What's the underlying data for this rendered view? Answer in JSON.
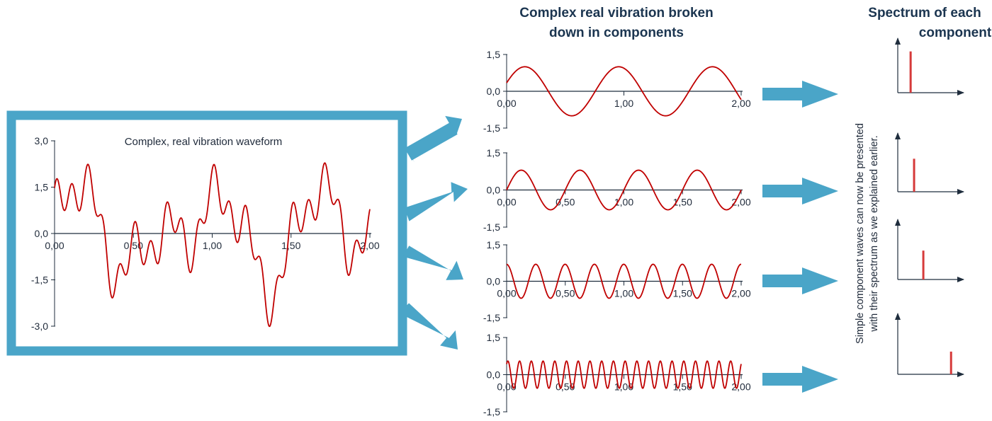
{
  "titles": {
    "middle": [
      "Complex real vibration broken",
      "down in components"
    ],
    "right": [
      "Spectrum of each",
      "component"
    ]
  },
  "side_note": [
    "Simple component waves can now be presented",
    "with their spectrum as we explained earlier."
  ],
  "colors": {
    "frame": "#4aa5c8",
    "wave": "#c00000",
    "axis": "#1f2d3d"
  },
  "chart_data": [
    {
      "type": "line",
      "title": "Complex, real vibration waveform",
      "x_range": [
        0,
        2
      ],
      "ylim": [
        -3,
        3
      ],
      "x_ticks": [
        "0,00",
        "0,50",
        "1,00",
        "1,50",
        "2,00"
      ],
      "y_ticks": [
        "3,0",
        "1,5",
        "0,0",
        "-1,5",
        "-3,0"
      ],
      "series": [
        {
          "components": [
            {
              "amplitude": 1.0,
              "frequency": 1.25,
              "phase": 0.35
            },
            {
              "amplitude": 0.8,
              "frequency": 2.0,
              "phase": 0.0
            },
            {
              "amplitude": 0.7,
              "frequency": 4.0,
              "phase": 1.6
            },
            {
              "amplitude": 0.55,
              "frequency": 10.0,
              "phase": 0.9
            }
          ]
        }
      ]
    },
    {
      "type": "line",
      "x_range": [
        0,
        2
      ],
      "ylim": [
        -1.5,
        1.5
      ],
      "x_ticks": [
        "0,00",
        "1,00",
        "2,00"
      ],
      "y_ticks": [
        "1,5",
        "0,0",
        "-1,5"
      ],
      "series": [
        {
          "amplitude": 1.0,
          "frequency": 1.25,
          "phase": 0.35
        }
      ]
    },
    {
      "type": "line",
      "x_range": [
        0,
        2
      ],
      "ylim": [
        -1.5,
        1.5
      ],
      "x_ticks": [
        "0,00",
        "0,50",
        "1,00",
        "1,50",
        "2,00"
      ],
      "y_ticks": [
        "1,5",
        "0,0",
        "-1,5"
      ],
      "series": [
        {
          "amplitude": 0.8,
          "frequency": 2.0,
          "phase": 0.0
        }
      ]
    },
    {
      "type": "line",
      "x_range": [
        0,
        2
      ],
      "ylim": [
        -1.5,
        1.5
      ],
      "x_ticks": [
        "0,00",
        "0,50",
        "1,00",
        "1,50",
        "2,00"
      ],
      "y_ticks": [
        "1,5",
        "0,0",
        "-1,5"
      ],
      "series": [
        {
          "amplitude": 0.7,
          "frequency": 4.0,
          "phase": 1.6
        }
      ]
    },
    {
      "type": "line",
      "x_range": [
        0,
        2
      ],
      "ylim": [
        -1.5,
        1.5
      ],
      "x_ticks": [
        "0,00",
        "0,50",
        "1,00",
        "1,50",
        "2,00"
      ],
      "y_ticks": [
        "1,5",
        "0,0",
        "-1,5"
      ],
      "series": [
        {
          "amplitude": 0.55,
          "frequency": 10.0,
          "phase": 0.9
        }
      ]
    },
    {
      "type": "bar",
      "bars": [
        {
          "frequency": 1.25,
          "amplitude": 1.0
        }
      ]
    },
    {
      "type": "bar",
      "bars": [
        {
          "frequency": 2.0,
          "amplitude": 0.8
        }
      ]
    },
    {
      "type": "bar",
      "bars": [
        {
          "frequency": 4.0,
          "amplitude": 0.7
        }
      ]
    },
    {
      "type": "bar",
      "bars": [
        {
          "frequency": 10.0,
          "amplitude": 0.55
        }
      ]
    }
  ]
}
